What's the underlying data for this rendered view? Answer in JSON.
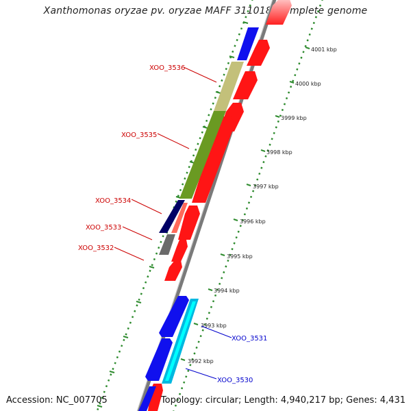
{
  "title": "Xanthomonas oryzae pv. oryzae MAFF 311018, complete genome",
  "accession": "Accession: NC_007705",
  "topology": "Topology: circular; Length: 4,940,217 bp; Genes: 4,431",
  "colors": {
    "backbone": "#777777",
    "dots": "#2e8b2e",
    "forward_label": "#0000cc",
    "reverse_label": "#cc0000"
  },
  "ticks": [
    {
      "label": "4001 kbp"
    },
    {
      "label": "4000 kbp"
    },
    {
      "label": "3999 kbp"
    },
    {
      "label": "3998 kbp"
    },
    {
      "label": "3997 kbp"
    },
    {
      "label": "3996 kbp"
    },
    {
      "label": "3995 kbp"
    },
    {
      "label": "3994 kbp"
    },
    {
      "label": "3993 kbp"
    },
    {
      "label": "3992 kbp"
    }
  ],
  "gene_labels": [
    {
      "text": "XOO_3536",
      "strand": "reverse"
    },
    {
      "text": "XOO_3535",
      "strand": "reverse"
    },
    {
      "text": "XOO_3534",
      "strand": "reverse"
    },
    {
      "text": "XOO_3533",
      "strand": "reverse"
    },
    {
      "text": "XOO_3532",
      "strand": "reverse"
    },
    {
      "text": "XOO_3531",
      "strand": "forward"
    },
    {
      "text": "XOO_3530",
      "strand": "forward"
    }
  ]
}
